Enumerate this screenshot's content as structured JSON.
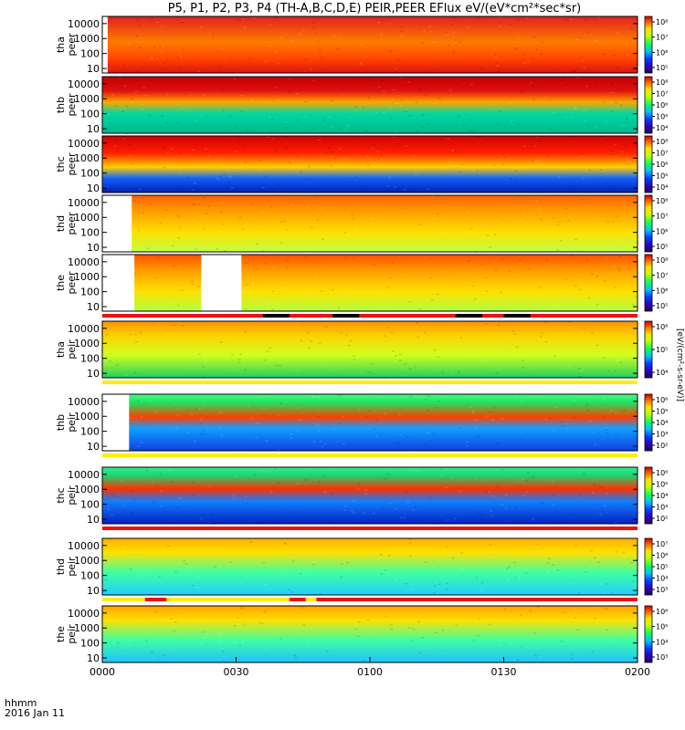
{
  "title": "P5, P1, P2, P3, P4 (TH-A,B,C,D,E) PEIR,PEER EFlux eV/(eV*cm²*sec*sr)",
  "colorbar_unit": "[eV/(cm²-s-sr-eV)]",
  "time_axis": {
    "label": "hhmm",
    "date": "2016 Jan 11"
  },
  "chart_data": {
    "type": "heatmap",
    "title": "P5, P1, P2, P3, P4 (TH-A,B,C,D,E) PEIR,PEER EFlux eV/(eV*cm²*sec*sr)",
    "x_ticks": [
      "0000",
      "0030",
      "0100",
      "0130",
      "0200"
    ],
    "y_ticks": [
      "10",
      "100",
      "1000",
      "10000"
    ],
    "y_scale": "log",
    "ylim": [
      5,
      30000
    ],
    "xlim": [
      "0000",
      "0200"
    ],
    "panels": [
      {
        "label": [
          "tha",
          "peer"
        ],
        "kind": "peer",
        "colorbar": [
          "10⁵",
          "10⁶",
          "10⁷",
          "10⁸"
        ],
        "bands": [
          [
            0.0,
            "#e01010"
          ],
          [
            0.25,
            "#ff4500"
          ],
          [
            0.55,
            "#ff7a00"
          ],
          [
            1.0,
            "#e02020"
          ]
        ],
        "gaps": [
          [
            0.0,
            0.01
          ]
        ],
        "flag": null
      },
      {
        "label": [
          "thb",
          "peer"
        ],
        "kind": "peer",
        "colorbar": [
          "10⁴",
          "10⁵",
          "10⁶",
          "10⁷",
          "10⁸"
        ],
        "bands": [
          [
            0.0,
            "#00b890"
          ],
          [
            0.35,
            "#00d8a0"
          ],
          [
            0.55,
            "#ffa500"
          ],
          [
            0.75,
            "#e01010"
          ],
          [
            1.0,
            "#c00000"
          ]
        ],
        "gaps": [],
        "flag": null
      },
      {
        "label": [
          "thc",
          "peer"
        ],
        "kind": "peer",
        "colorbar": [
          "10⁴",
          "10⁵",
          "10⁶",
          "10⁷",
          "10⁸"
        ],
        "bands": [
          [
            0.0,
            "#0020b0"
          ],
          [
            0.25,
            "#1060ff"
          ],
          [
            0.45,
            "#ffd000"
          ],
          [
            0.7,
            "#ff2000"
          ],
          [
            1.0,
            "#d00000"
          ]
        ],
        "gaps": [],
        "flag": null
      },
      {
        "label": [
          "thd",
          "peer"
        ],
        "kind": "peer",
        "colorbar": [
          "10⁵",
          "10⁶",
          "10⁷",
          "10⁸"
        ],
        "bands": [
          [
            0.0,
            "#c0ff40"
          ],
          [
            0.35,
            "#ffe000"
          ],
          [
            0.7,
            "#ffa000"
          ],
          [
            1.0,
            "#ff6000"
          ]
        ],
        "gaps": [
          [
            0.0,
            0.055
          ]
        ],
        "flag": null
      },
      {
        "label": [
          "the",
          "peer"
        ],
        "kind": "peer",
        "colorbar": [
          "10⁵",
          "10⁶",
          "10⁷",
          "10⁸"
        ],
        "bands": [
          [
            0.0,
            "#b0ff40"
          ],
          [
            0.35,
            "#ffe000"
          ],
          [
            0.7,
            "#ffa000"
          ],
          [
            1.0,
            "#ff5000"
          ]
        ],
        "gaps": [
          [
            0.0,
            0.06
          ],
          [
            0.185,
            0.26
          ]
        ],
        "flag": "red-black"
      },
      {
        "label": [
          "tha",
          "peir"
        ],
        "kind": "peir",
        "colorbar": [
          "10⁴",
          "10⁵",
          "10⁶"
        ],
        "bands": [
          [
            0.0,
            "#20d060"
          ],
          [
            0.4,
            "#d0ff20"
          ],
          [
            0.75,
            "#ffd000"
          ],
          [
            1.0,
            "#ff9000"
          ]
        ],
        "gaps": [],
        "flag": "yellow"
      },
      {
        "label": [
          "thb",
          "peir"
        ],
        "kind": "peir",
        "colorbar": [
          "10²",
          "10³",
          "10⁴",
          "10⁵",
          "10⁶"
        ],
        "bands": [
          [
            0.0,
            "#1040e0"
          ],
          [
            0.4,
            "#10a0ff"
          ],
          [
            0.6,
            "#ff4000"
          ],
          [
            0.85,
            "#20e060"
          ],
          [
            1.0,
            "#40ff80"
          ]
        ],
        "gaps": [
          [
            0.0,
            0.05
          ]
        ],
        "flag": "yellow"
      },
      {
        "label": [
          "thc",
          "peir"
        ],
        "kind": "peir",
        "colorbar": [
          "10²",
          "10³",
          "10⁴",
          "10⁵",
          "10⁶"
        ],
        "bands": [
          [
            0.0,
            "#0820c0"
          ],
          [
            0.4,
            "#1080ff"
          ],
          [
            0.62,
            "#ff3000"
          ],
          [
            0.85,
            "#20d070"
          ],
          [
            1.0,
            "#30f090"
          ]
        ],
        "gaps": [],
        "flag": "red"
      },
      {
        "label": [
          "thd",
          "peir"
        ],
        "kind": "peir",
        "colorbar": [
          "10³",
          "10⁴",
          "10⁵",
          "10⁶",
          "10⁷"
        ],
        "bands": [
          [
            0.0,
            "#20d0ff"
          ],
          [
            0.4,
            "#40ffa0"
          ],
          [
            0.75,
            "#ffe000"
          ],
          [
            1.0,
            "#ffb000"
          ]
        ],
        "gaps": [],
        "flag": "mixed"
      },
      {
        "label": [
          "the",
          "peir"
        ],
        "kind": "peir",
        "colorbar": [
          "10³",
          "10⁴",
          "10⁵",
          "10⁶"
        ],
        "bands": [
          [
            0.0,
            "#20c0ff"
          ],
          [
            0.4,
            "#40ffa0"
          ],
          [
            0.75,
            "#ffe000"
          ],
          [
            1.0,
            "#ffa000"
          ]
        ],
        "gaps": [],
        "flag": null
      }
    ]
  }
}
